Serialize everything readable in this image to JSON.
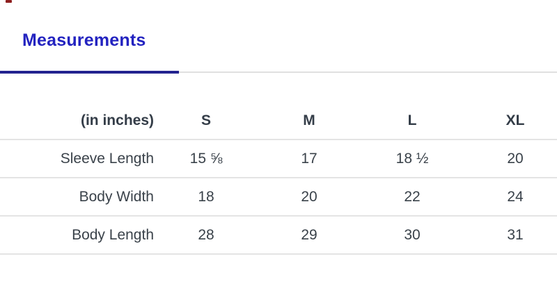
{
  "page": {
    "background_color": "#ffffff",
    "accent_blue": "#2323c0",
    "active_tab_underline_color": "#23238f",
    "inactive_tab_line_color": "#e0e0e0",
    "separator_color": "#e4e4e4",
    "text_color": "#3a424a",
    "artifact_color": "#8e1f1f"
  },
  "tabs": {
    "active_label": "Measurements"
  },
  "table": {
    "unit_header": "(in inches)",
    "columns": [
      "S",
      "M",
      "L",
      "XL"
    ],
    "rows": [
      {
        "label": "Sleeve Length",
        "values": [
          "15 ⅝",
          "17",
          "18 ½",
          "20"
        ]
      },
      {
        "label": "Body Width",
        "values": [
          "18",
          "20",
          "22",
          "24"
        ]
      },
      {
        "label": "Body Length",
        "values": [
          "28",
          "29",
          "30",
          "31"
        ]
      }
    ]
  }
}
